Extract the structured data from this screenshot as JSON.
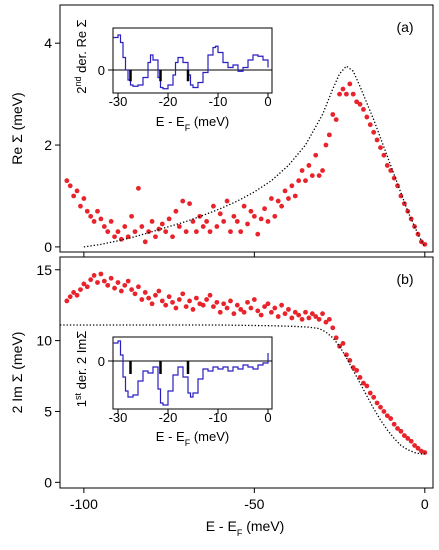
{
  "chart_data": [
    {
      "type": "scatter",
      "annotation": "(a)",
      "ylabel": "Re Σ (meV)",
      "xlim": [
        -107,
        2.4
      ],
      "ylim": [
        -0.1,
        4.75
      ],
      "xticks": [
        -100,
        -50,
        0
      ],
      "yticks": [
        0,
        2,
        4
      ],
      "xtick_labels": false,
      "series": [
        {
          "color": "#e8232b",
          "mode": "markers",
          "x": [
            -105,
            -104,
            -103,
            -102,
            -101,
            -100,
            -99,
            -98,
            -97,
            -96,
            -95,
            -94,
            -93,
            -92,
            -91,
            -90,
            -89,
            -88,
            -87,
            -86,
            -85,
            -84,
            -83,
            -82,
            -81,
            -80,
            -79,
            -78,
            -77,
            -76,
            -75,
            -74,
            -73,
            -72,
            -71,
            -70,
            -69,
            -68,
            -67,
            -66,
            -65,
            -64,
            -63,
            -62,
            -61,
            -60,
            -59,
            -58,
            -57,
            -56,
            -55,
            -54,
            -53,
            -52,
            -51,
            -50,
            -49,
            -48,
            -47,
            -46,
            -45,
            -44,
            -43,
            -42,
            -41,
            -40,
            -39,
            -38,
            -37,
            -36,
            -35,
            -34,
            -33,
            -32,
            -31,
            -30,
            -29,
            -28,
            -27,
            -26,
            -25,
            -24,
            -23,
            -22,
            -21,
            -20,
            -19,
            -18,
            -17,
            -16,
            -15,
            -14,
            -13,
            -12,
            -11,
            -10,
            -9,
            -8,
            -7,
            -6,
            -5,
            -4,
            -3,
            -2,
            -1,
            0
          ],
          "values": [
            1.3,
            1.2,
            1.0,
            1.1,
            0.8,
            0.95,
            0.7,
            0.6,
            0.5,
            0.7,
            0.55,
            0.4,
            0.3,
            0.5,
            0.2,
            0.3,
            0.15,
            0.4,
            0.2,
            0.6,
            0.3,
            1.15,
            0.4,
            0.1,
            0.3,
            0.5,
            0.2,
            0.35,
            0.45,
            0.3,
            0.55,
            0.2,
            0.7,
            0.4,
            0.9,
            0.3,
            0.85,
            0.5,
            0.3,
            0.6,
            0.4,
            0.5,
            0.3,
            0.8,
            0.4,
            0.65,
            0.5,
            0.9,
            0.3,
            0.6,
            0.5,
            0.3,
            0.8,
            0.45,
            0.7,
            0.6,
            0.25,
            0.55,
            0.75,
            0.5,
            0.95,
            0.6,
            0.9,
            0.8,
            1.1,
            0.95,
            1.2,
            1.0,
            1.3,
            1.5,
            1.3,
            1.6,
            1.4,
            1.8,
            1.4,
            1.5,
            2.0,
            2.2,
            2.6,
            2.5,
            3.0,
            3.1,
            3.0,
            3.2,
            3.0,
            2.85,
            2.8,
            2.7,
            2.55,
            2.4,
            2.25,
            2.1,
            1.95,
            1.8,
            1.6,
            1.5,
            1.35,
            1.2,
            1.0,
            0.85,
            0.7,
            0.55,
            0.4,
            0.25,
            0.1,
            0.05
          ]
        },
        {
          "color": "#000000",
          "mode": "dotted",
          "x": [
            -100,
            -95,
            -90,
            -85,
            -80,
            -75,
            -70,
            -65,
            -60,
            -55,
            -50,
            -45,
            -40,
            -35,
            -30,
            -27,
            -25,
            -23,
            -21,
            -19,
            -15,
            -10,
            -5,
            -2,
            0
          ],
          "values": [
            0.0,
            0.05,
            0.12,
            0.2,
            0.3,
            0.4,
            0.5,
            0.62,
            0.75,
            0.9,
            1.08,
            1.3,
            1.6,
            2.0,
            2.6,
            3.1,
            3.4,
            3.55,
            3.45,
            3.15,
            2.5,
            1.6,
            0.7,
            0.25,
            0
          ]
        }
      ]
    },
    {
      "type": "line",
      "inset": true,
      "ylabel": [
        "2",
        "nd",
        " der. Re Σ"
      ],
      "xlabel": [
        "E - E",
        "F",
        " (meV)"
      ],
      "xlim": [
        -31,
        0.8
      ],
      "ylim": [
        -0.92,
        1.68
      ],
      "xticks": [
        -30,
        -20,
        -10,
        0
      ],
      "yticks": [
        0
      ],
      "grid": true,
      "step": true,
      "series": [
        {
          "color": "#2a1fc0",
          "mode": "line",
          "x": [
            -31,
            -30,
            -29.5,
            -29,
            -28.5,
            -28,
            -27.5,
            -27,
            -26,
            -25,
            -24,
            -23.5,
            -23,
            -22,
            -21.5,
            -21,
            -20,
            -19,
            -18.5,
            -18,
            -17,
            -16,
            -15.5,
            -15,
            -14,
            -13,
            -12,
            -11,
            -10.5,
            -10,
            -9,
            -8,
            -7,
            -6,
            -5,
            -4,
            -3,
            -2,
            -1,
            0
          ],
          "values": [
            1.3,
            1.4,
            1.1,
            0.5,
            0,
            -0.4,
            -0.6,
            -0.65,
            -0.6,
            -0.3,
            0.3,
            0.6,
            0.4,
            -0.3,
            -0.7,
            -0.75,
            -0.6,
            -0.2,
            0.3,
            0.5,
            0.3,
            -0.2,
            -0.6,
            -0.7,
            -0.5,
            -0.1,
            0.6,
            0.9,
            0.95,
            0.7,
            0.3,
            0.1,
            0.2,
            -0.05,
            0.1,
            0.4,
            0.6,
            0.55,
            0.4,
            0.1
          ]
        },
        {
          "color": "#000000",
          "mode": "bars",
          "x": [
            -27.5,
            -21.5,
            -16
          ],
          "values": [
            -0.45,
            -0.45,
            -0.45
          ]
        }
      ]
    },
    {
      "type": "scatter",
      "annotation": "(b)",
      "ylabel": "2 Im Σ (meV)",
      "xlabel": [
        "E - E",
        "F",
        " (meV)"
      ],
      "xlim": [
        -107,
        2.4
      ],
      "ylim": [
        -0.4,
        15.9
      ],
      "xticks": [
        -100,
        -50,
        0
      ],
      "yticks": [
        0,
        5,
        10,
        15
      ],
      "xtick_labels": true,
      "series": [
        {
          "color": "#e8232b",
          "mode": "markers",
          "x": [
            -105,
            -104,
            -103,
            -102,
            -101,
            -100,
            -99,
            -98,
            -97,
            -96,
            -95,
            -94,
            -93,
            -92,
            -91,
            -90,
            -89,
            -88,
            -87,
            -86,
            -85,
            -84,
            -83,
            -82,
            -81,
            -80,
            -79,
            -78,
            -77,
            -76,
            -75,
            -74,
            -73,
            -72,
            -71,
            -70,
            -69,
            -68,
            -67,
            -66,
            -65,
            -64,
            -63,
            -62,
            -61,
            -60,
            -59,
            -58,
            -57,
            -56,
            -55,
            -54,
            -53,
            -52,
            -51,
            -50,
            -49,
            -48,
            -47,
            -46,
            -45,
            -44,
            -43,
            -42,
            -41,
            -40,
            -39,
            -38,
            -37,
            -36,
            -35,
            -34,
            -33,
            -32,
            -31,
            -30,
            -29,
            -28,
            -27,
            -26,
            -25,
            -24,
            -23,
            -22,
            -21,
            -20,
            -19,
            -18,
            -17,
            -16,
            -15,
            -14,
            -13,
            -12,
            -11,
            -10,
            -9,
            -8,
            -7,
            -6,
            -5,
            -4,
            -3,
            -2,
            -1,
            0
          ],
          "values": [
            12.8,
            13.1,
            13.4,
            13.2,
            13.6,
            14.0,
            13.8,
            14.3,
            14.6,
            14.1,
            14.7,
            14.2,
            13.9,
            14.4,
            13.7,
            14.1,
            13.5,
            13.9,
            14.2,
            13.6,
            13.3,
            13.8,
            12.9,
            13.4,
            13.0,
            12.6,
            13.2,
            13.5,
            12.8,
            12.5,
            13.1,
            12.7,
            12.3,
            12.9,
            13.3,
            12.4,
            12.8,
            12.2,
            13.0,
            12.6,
            12.5,
            12.9,
            13.2,
            12.4,
            12.7,
            12.0,
            12.6,
            12.3,
            12.8,
            11.9,
            12.5,
            12.2,
            12.0,
            12.7,
            12.3,
            12.9,
            12.1,
            11.8,
            12.4,
            12.6,
            12.0,
            12.3,
            11.7,
            12.5,
            11.9,
            12.2,
            11.6,
            12.0,
            11.8,
            11.5,
            12.0,
            11.6,
            11.9,
            11.7,
            11.5,
            11.9,
            11.3,
            11.5,
            10.9,
            10.2,
            9.6,
            9.8,
            9.0,
            8.6,
            8.1,
            7.9,
            7.4,
            7.0,
            6.8,
            6.3,
            6.0,
            5.6,
            5.3,
            5.0,
            4.7,
            4.5,
            4.1,
            3.8,
            3.6,
            3.3,
            3.1,
            2.9,
            2.6,
            2.4,
            2.2,
            2.1
          ]
        },
        {
          "color": "#000000",
          "mode": "dotted",
          "x": [
            -107,
            -80,
            -60,
            -45,
            -38,
            -34,
            -31,
            -29,
            -27,
            -25,
            -23,
            -21,
            -19,
            -17,
            -15,
            -13,
            -11,
            -9,
            -7,
            -5,
            -3,
            -1,
            0
          ],
          "values": [
            11.1,
            11.1,
            11.1,
            11.05,
            11.0,
            10.95,
            10.85,
            10.6,
            10.2,
            9.6,
            8.8,
            7.9,
            7.0,
            6.1,
            5.2,
            4.4,
            3.7,
            3.1,
            2.6,
            2.3,
            2.1,
            2.0,
            2.05
          ]
        }
      ]
    },
    {
      "type": "line",
      "inset": true,
      "ylabel": [
        "1",
        "st",
        " der. 2 ImΣ"
      ],
      "xlabel": [
        "E - E",
        "F",
        " (meV)"
      ],
      "xlim": [
        -31,
        0.8
      ],
      "ylim": [
        -2.4,
        1.2
      ],
      "xticks": [
        -30,
        -20,
        -10,
        0
      ],
      "yticks": [
        0
      ],
      "grid": true,
      "step": true,
      "series": [
        {
          "color": "#2a1fc0",
          "mode": "line",
          "x": [
            -31,
            -30,
            -29.5,
            -29,
            -28.5,
            -28,
            -27,
            -26,
            -25,
            -24,
            -23,
            -22,
            -21.5,
            -21,
            -20,
            -19,
            -18,
            -17,
            -16,
            -15.5,
            -15,
            -14,
            -13,
            -12,
            -11,
            -10,
            -9,
            -8,
            -7,
            -6,
            -5,
            -4,
            -3,
            -2,
            -1,
            0
          ],
          "values": [
            0.9,
            1.0,
            0.3,
            -0.8,
            -1.5,
            -1.8,
            -1.7,
            -1.0,
            -0.5,
            -0.6,
            -0.3,
            -1.4,
            -2.1,
            -2.2,
            -1.5,
            -0.7,
            -0.3,
            -0.8,
            -1.6,
            -1.8,
            -1.6,
            -0.9,
            -0.4,
            -0.5,
            -0.3,
            -0.4,
            -0.3,
            -0.5,
            -0.3,
            -0.4,
            -0.2,
            -0.3,
            -0.4,
            -0.2,
            -0.1,
            0.4
          ]
        },
        {
          "color": "#000000",
          "mode": "bars",
          "x": [
            -27.5,
            -21.5,
            -16
          ],
          "values": [
            -0.65,
            -0.65,
            -0.65
          ]
        }
      ]
    }
  ]
}
